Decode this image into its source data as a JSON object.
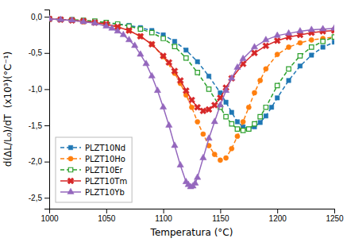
{
  "chart_data": {
    "type": "line",
    "xlabel": "Temperatura (°C)",
    "ylabel": "d(ΔL/L₀)/dT  (x10³)(°C⁻¹)",
    "xlim": [
      1000,
      1250
    ],
    "ylim": [
      -2.65,
      0.1
    ],
    "xticks": [
      1000,
      1050,
      1100,
      1150,
      1200,
      1250
    ],
    "yticks": [
      {
        "value": 0.0,
        "label": "0,0"
      },
      {
        "value": -0.5,
        "label": "-0,5"
      },
      {
        "value": -1.0,
        "label": "-1,0"
      },
      {
        "value": -1.5,
        "label": "-1,5"
      },
      {
        "value": -2.0,
        "label": "-2,0"
      },
      {
        "value": -2.5,
        "label": "-2,5"
      }
    ],
    "grid": false,
    "legend": "lower left",
    "series": [
      {
        "name": "PLZT10Nd",
        "marker": "square",
        "line_style": "dashed",
        "x": [
          1000,
          1010,
          1020,
          1030,
          1040,
          1050,
          1060,
          1070,
          1080,
          1090,
          1100,
          1110,
          1120,
          1130,
          1140,
          1150,
          1155,
          1160,
          1165,
          1170,
          1175,
          1180,
          1185,
          1190,
          1195,
          1200,
          1210,
          1220,
          1230,
          1240,
          1250
        ],
        "values": [
          -0.03,
          -0.04,
          -0.05,
          -0.06,
          -0.07,
          -0.08,
          -0.1,
          -0.12,
          -0.15,
          -0.19,
          -0.25,
          -0.34,
          -0.46,
          -0.62,
          -0.82,
          -1.05,
          -1.18,
          -1.32,
          -1.45,
          -1.52,
          -1.55,
          -1.52,
          -1.46,
          -1.37,
          -1.25,
          -1.12,
          -0.88,
          -0.68,
          -0.53,
          -0.42,
          -0.35
        ]
      },
      {
        "name": "PLZT10Ho",
        "marker": "circle",
        "line_style": "dashed",
        "x": [
          1000,
          1010,
          1020,
          1030,
          1040,
          1050,
          1060,
          1070,
          1080,
          1090,
          1100,
          1110,
          1115,
          1120,
          1125,
          1130,
          1135,
          1140,
          1145,
          1150,
          1155,
          1160,
          1165,
          1170,
          1175,
          1180,
          1185,
          1190,
          1200,
          1210,
          1220,
          1230,
          1240,
          1250
        ],
        "values": [
          -0.03,
          -0.04,
          -0.05,
          -0.07,
          -0.08,
          -0.1,
          -0.14,
          -0.19,
          -0.27,
          -0.38,
          -0.55,
          -0.78,
          -0.92,
          -1.08,
          -1.25,
          -1.45,
          -1.62,
          -1.78,
          -1.9,
          -1.98,
          -1.95,
          -1.82,
          -1.65,
          -1.45,
          -1.25,
          -1.05,
          -0.88,
          -0.72,
          -0.52,
          -0.42,
          -0.36,
          -0.32,
          -0.3,
          -0.28
        ]
      },
      {
        "name": "PLZT10Er",
        "marker": "open-square",
        "line_style": "dashed",
        "x": [
          1000,
          1010,
          1020,
          1030,
          1040,
          1050,
          1060,
          1070,
          1080,
          1090,
          1100,
          1110,
          1120,
          1130,
          1140,
          1150,
          1155,
          1160,
          1165,
          1170,
          1175,
          1180,
          1185,
          1190,
          1200,
          1210,
          1220,
          1230,
          1240,
          1250
        ],
        "values": [
          -0.03,
          -0.04,
          -0.04,
          -0.05,
          -0.06,
          -0.08,
          -0.1,
          -0.13,
          -0.17,
          -0.22,
          -0.3,
          -0.41,
          -0.57,
          -0.77,
          -1.0,
          -1.25,
          -1.38,
          -1.48,
          -1.55,
          -1.57,
          -1.55,
          -1.48,
          -1.38,
          -1.25,
          -0.95,
          -0.72,
          -0.54,
          -0.42,
          -0.34,
          -0.28
        ]
      },
      {
        "name": "PLZT10Tm",
        "marker": "x",
        "line_style": "solid",
        "x": [
          1000,
          1010,
          1020,
          1030,
          1040,
          1050,
          1060,
          1070,
          1080,
          1090,
          1100,
          1105,
          1110,
          1115,
          1120,
          1125,
          1130,
          1135,
          1140,
          1145,
          1150,
          1155,
          1160,
          1170,
          1180,
          1190,
          1200,
          1210,
          1220,
          1230,
          1240,
          1250
        ],
        "values": [
          -0.03,
          -0.04,
          -0.05,
          -0.06,
          -0.08,
          -0.1,
          -0.14,
          -0.19,
          -0.27,
          -0.38,
          -0.54,
          -0.63,
          -0.75,
          -0.88,
          -1.02,
          -1.15,
          -1.25,
          -1.3,
          -1.28,
          -1.22,
          -1.12,
          -0.98,
          -0.85,
          -0.65,
          -0.5,
          -0.4,
          -0.33,
          -0.28,
          -0.25,
          -0.22,
          -0.2,
          -0.19
        ]
      },
      {
        "name": "PLZT10Yb",
        "marker": "triangle",
        "line_style": "solid",
        "x": [
          1000,
          1010,
          1020,
          1030,
          1040,
          1050,
          1055,
          1060,
          1065,
          1070,
          1075,
          1080,
          1085,
          1090,
          1095,
          1100,
          1105,
          1110,
          1115,
          1120,
          1122,
          1124,
          1126,
          1128,
          1130,
          1135,
          1140,
          1145,
          1150,
          1155,
          1160,
          1165,
          1170,
          1180,
          1190,
          1200,
          1210,
          1220,
          1230,
          1240,
          1250
        ],
        "values": [
          -0.03,
          -0.04,
          -0.05,
          -0.07,
          -0.09,
          -0.13,
          -0.16,
          -0.2,
          -0.25,
          -0.32,
          -0.4,
          -0.52,
          -0.65,
          -0.82,
          -1.02,
          -1.25,
          -1.5,
          -1.78,
          -2.05,
          -2.28,
          -2.32,
          -2.35,
          -2.34,
          -2.3,
          -2.22,
          -1.95,
          -1.68,
          -1.45,
          -1.22,
          -1.02,
          -0.85,
          -0.7,
          -0.58,
          -0.42,
          -0.32,
          -0.26,
          -0.23,
          -0.2,
          -0.18,
          -0.17,
          -0.16
        ]
      }
    ]
  }
}
